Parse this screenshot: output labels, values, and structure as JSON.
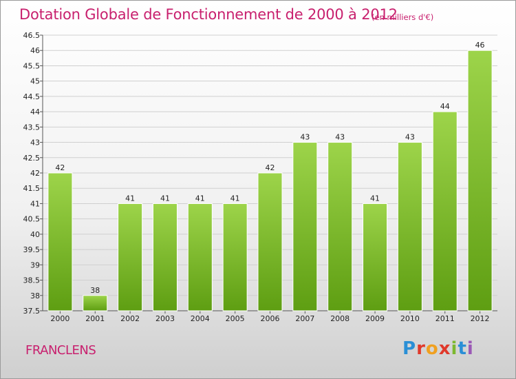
{
  "header": {
    "title": "Dotation Globale de Fonctionnement de 2000 à 2012",
    "subtitle": "(en milliers d'€)"
  },
  "footer": {
    "commune": "FRANCLENS",
    "logo": "Proxiti"
  },
  "colors": {
    "title": "#c8206e",
    "bar_top": "#9dd44a",
    "bar_bottom": "#5e9e12"
  },
  "chart_data": {
    "type": "bar",
    "title": "Dotation Globale de Fonctionnement de 2000 à 2012",
    "subtitle": "(en milliers d'€)",
    "xlabel": "",
    "ylabel": "",
    "categories": [
      "2000",
      "2001",
      "2002",
      "2003",
      "2004",
      "2005",
      "2006",
      "2007",
      "2008",
      "2009",
      "2010",
      "2011",
      "2012"
    ],
    "values": [
      42,
      38,
      41,
      41,
      41,
      41,
      42,
      43,
      43,
      41,
      43,
      44,
      46
    ],
    "ylim": [
      37.5,
      46.5
    ],
    "yticks": [
      "37.5",
      "38",
      "38.5",
      "39",
      "39.5",
      "40",
      "40.5",
      "41",
      "41.5",
      "42",
      "42.5",
      "43",
      "43.5",
      "44",
      "44.5",
      "45",
      "45.5",
      "46",
      "46.5"
    ],
    "grid": true,
    "legend": "none"
  }
}
